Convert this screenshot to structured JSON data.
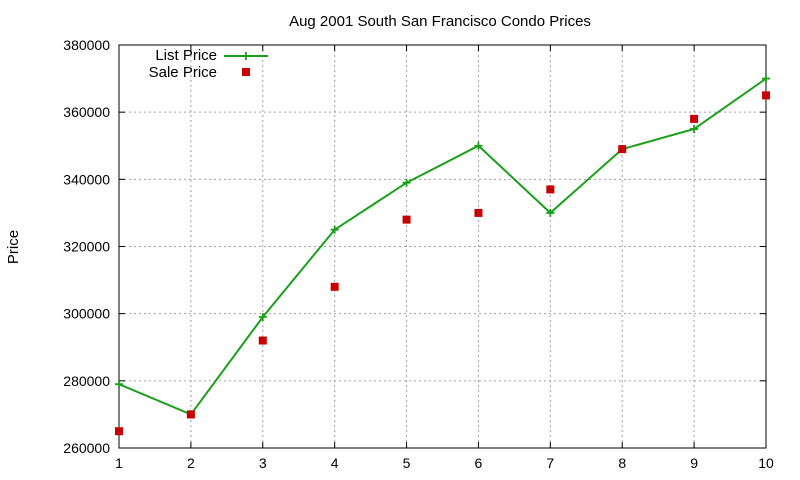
{
  "chart_data": {
    "type": "line",
    "title": "Aug 2001 South San Francisco Condo Prices",
    "xlabel": "",
    "ylabel": "Price",
    "x": [
      1,
      2,
      3,
      4,
      5,
      6,
      7,
      8,
      9,
      10
    ],
    "xlim": [
      1,
      10
    ],
    "ylim": [
      260000,
      380000
    ],
    "yticks": [
      260000,
      280000,
      300000,
      320000,
      340000,
      360000,
      380000
    ],
    "xticks": [
      1,
      2,
      3,
      4,
      5,
      6,
      7,
      8,
      9,
      10
    ],
    "grid": true,
    "legend": "top-left",
    "series": [
      {
        "name": "List Price",
        "style": "lines+points",
        "marker": "plus",
        "color": "#1aa01a",
        "values": [
          279000,
          270000,
          299000,
          325000,
          339000,
          350000,
          330000,
          349000,
          355000,
          370000
        ]
      },
      {
        "name": "Sale Price",
        "style": "points",
        "marker": "square",
        "color": "#c80000",
        "values": [
          265000,
          270000,
          292000,
          308000,
          328000,
          330000,
          337000,
          349000,
          358000,
          365000
        ]
      }
    ]
  }
}
